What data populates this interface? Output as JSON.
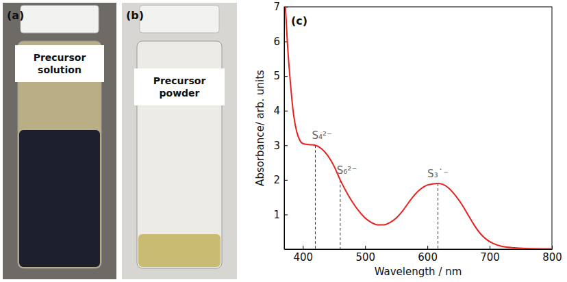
{
  "panels": [
    {
      "label": "(a)",
      "caption": "Precursor solution"
    },
    {
      "label": "(b)",
      "caption": "Precursor powder"
    }
  ],
  "chart_data": {
    "type": "line",
    "title": "(c)",
    "x_label": "Wavelength / nm",
    "y_label": "Absorbance/ arb. units",
    "x": [
      372,
      375,
      380,
      385,
      390,
      395,
      400,
      410,
      420,
      430,
      440,
      450,
      460,
      470,
      480,
      490,
      500,
      510,
      520,
      530,
      540,
      550,
      560,
      570,
      580,
      590,
      600,
      610,
      617,
      625,
      635,
      645,
      655,
      665,
      675,
      685,
      695,
      705,
      720,
      740,
      760,
      800
    ],
    "series": [
      {
        "color": "#e8201e",
        "values": [
          7.0,
          6.0,
          4.8,
          3.9,
          3.4,
          3.15,
          3.05,
          3.02,
          3.0,
          2.9,
          2.7,
          2.4,
          2.0,
          1.65,
          1.35,
          1.1,
          0.9,
          0.77,
          0.7,
          0.7,
          0.77,
          0.9,
          1.1,
          1.35,
          1.58,
          1.75,
          1.85,
          1.89,
          1.9,
          1.87,
          1.75,
          1.55,
          1.3,
          1.0,
          0.7,
          0.45,
          0.28,
          0.17,
          0.08,
          0.04,
          0.02,
          0.01
        ]
      }
    ],
    "xlim": [
      370,
      800
    ],
    "xticks": [
      400,
      500,
      600,
      700,
      800
    ],
    "ylim": [
      0,
      7
    ],
    "yticks": [
      1,
      2,
      3,
      4,
      5,
      6,
      7
    ],
    "annotations": [
      {
        "text": "S₄²⁻",
        "x": 420,
        "y": 3.0
      },
      {
        "text": "S₆²⁻",
        "x": 460,
        "y": 2.0
      },
      {
        "text": "S₃˙⁻",
        "x": 617,
        "y": 1.9
      }
    ]
  }
}
